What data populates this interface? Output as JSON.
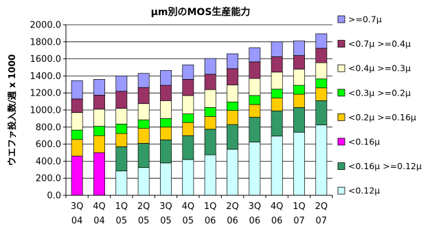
{
  "chart_data": {
    "type": "bar",
    "stacked": true,
    "title": "μm別のMOS生産能力",
    "ylabel": "ウエファ投入数/週 x 1000",
    "xlabel": "",
    "ylim": [
      0,
      2000
    ],
    "yticks": [
      "0.0",
      "200.0",
      "400.0",
      "600.0",
      "800.0",
      "1000.0",
      "1200.0",
      "1400.0",
      "1600.0",
      "1800.0",
      "2000.0"
    ],
    "grid": true,
    "legend_position": "right",
    "categories": [
      [
        "3Q",
        "04"
      ],
      [
        "4Q",
        "04"
      ],
      [
        "1Q",
        "05"
      ],
      [
        "2Q",
        "05"
      ],
      [
        "3Q",
        "05"
      ],
      [
        "4Q",
        "05"
      ],
      [
        "1Q",
        "06"
      ],
      [
        "2Q",
        "06"
      ],
      [
        "3Q",
        "06"
      ],
      [
        "4Q",
        "06"
      ],
      [
        "1Q",
        "07"
      ],
      [
        "2Q",
        "07"
      ]
    ],
    "series": [
      {
        "name": "<0.12μ",
        "color": "#ccffff",
        "values": [
          0,
          0,
          285,
          325,
          380,
          420,
          475,
          540,
          625,
          695,
          740,
          825
        ]
      },
      {
        "name": "<0.16μ >=0.12μ",
        "color": "#339966",
        "values": [
          0,
          0,
          285,
          285,
          270,
          280,
          300,
          290,
          290,
          295,
          290,
          285
        ]
      },
      {
        "name": "<0.16μ",
        "color": "#ff00ff",
        "values": [
          460,
          500,
          0,
          0,
          0,
          0,
          0,
          0,
          0,
          0,
          0,
          0
        ]
      },
      {
        "name": "<0.2μ >=0.16μ",
        "color": "#ffcc00",
        "values": [
          195,
          200,
          155,
          175,
          150,
          155,
          150,
          165,
          150,
          150,
          155,
          150
        ]
      },
      {
        "name": "<0.3μ >=0.2μ",
        "color": "#00ff00",
        "values": [
          110,
          110,
          110,
          100,
          100,
          100,
          105,
          100,
          105,
          105,
          105,
          105
        ]
      },
      {
        "name": "<0.4μ >=0.3μ",
        "color": "#ffffcc",
        "values": [
          205,
          200,
          185,
          190,
          210,
          215,
          210,
          200,
          200,
          200,
          190,
          190
        ]
      },
      {
        "name": "<0.7μ >=0.4μ",
        "color": "#993366",
        "values": [
          160,
          165,
          200,
          190,
          180,
          190,
          180,
          190,
          195,
          180,
          160,
          170
        ]
      },
      {
        "name": ">=0.7μ",
        "color": "#9999ff",
        "values": [
          215,
          185,
          180,
          165,
          175,
          170,
          185,
          175,
          165,
          175,
          170,
          170
        ]
      }
    ],
    "legend_order": [
      ">=0.7μ",
      "<0.7μ >=0.4μ",
      "<0.4μ >=0.3μ",
      "<0.3μ >=0.2μ",
      "<0.2μ >=0.16μ",
      "<0.16μ",
      "<0.16μ >=0.12μ",
      "<0.12μ"
    ]
  }
}
